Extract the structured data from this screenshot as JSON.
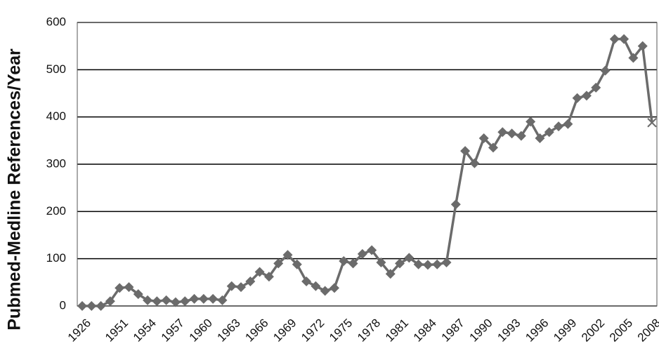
{
  "chart_data": {
    "type": "line",
    "y_label": "Pubmed-Medline References/Year",
    "categories": [
      "1926",
      null,
      null,
      null,
      "1951",
      null,
      null,
      "1954",
      null,
      null,
      "1957",
      null,
      null,
      "1960",
      null,
      null,
      "1963",
      null,
      null,
      "1966",
      null,
      null,
      "1969",
      null,
      null,
      "1972",
      null,
      null,
      "1975",
      null,
      null,
      "1978",
      null,
      null,
      "1981",
      null,
      null,
      "1984",
      null,
      null,
      "1987",
      null,
      null,
      "1990",
      null,
      null,
      "1993",
      null,
      null,
      "1996",
      null,
      null,
      "1999",
      null,
      null,
      "2002",
      null,
      null,
      "2005",
      null,
      null,
      "2008"
    ],
    "series": [
      {
        "name": "Pubmed-Medline References/Year",
        "color": "#6b6b6b",
        "values": [
          0,
          0,
          0,
          10,
          38,
          40,
          25,
          12,
          10,
          12,
          8,
          10,
          15,
          15,
          15,
          12,
          42,
          40,
          52,
          72,
          62,
          90,
          108,
          88,
          52,
          42,
          32,
          38,
          95,
          90,
          110,
          118,
          92,
          68,
          90,
          102,
          88,
          87,
          88,
          92,
          215,
          328,
          302,
          355,
          335,
          368,
          365,
          360,
          390,
          355,
          368,
          380,
          385,
          440,
          445,
          462,
          498,
          565,
          565,
          525,
          550,
          388
        ]
      }
    ],
    "ylim": [
      0,
      600
    ],
    "yticks": [
      0,
      100,
      200,
      300,
      400,
      500,
      600
    ],
    "grid": true
  }
}
